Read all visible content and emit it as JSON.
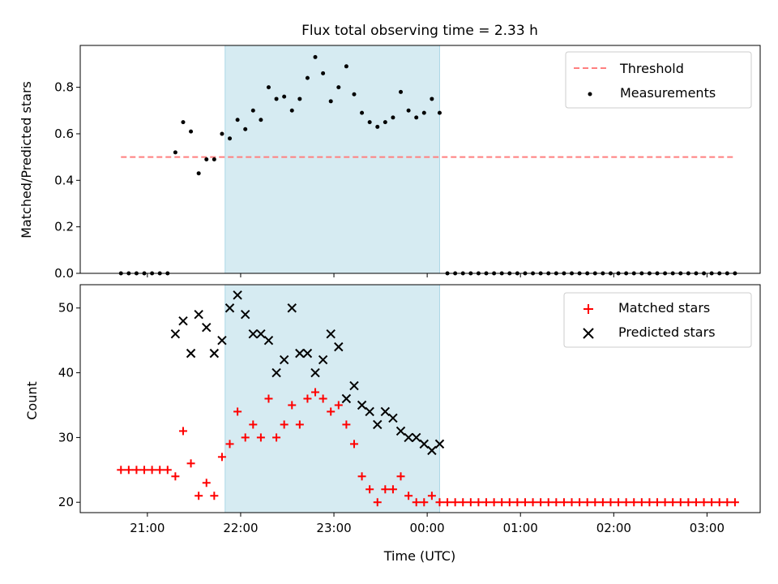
{
  "title": "Flux total observing time = 2.33 h",
  "colors": {
    "threshold": "#ff7f7f",
    "measurement": "#000000",
    "matched": "#ff0000",
    "predicted": "#000000",
    "shade": "#add8e6"
  },
  "chart_data": [
    {
      "type": "scatter",
      "panel": "top",
      "title": "Flux total observing time = 2.33 h",
      "xlabel": "",
      "ylabel": "Matched/Predicted stars",
      "xlim": [
        20.28,
        3.57
      ],
      "ylim": [
        0.0,
        0.98
      ],
      "yticks": [
        0.0,
        0.2,
        0.4,
        0.6,
        0.8
      ],
      "ytick_labels": [
        "0.0",
        "0.2",
        "0.4",
        "0.6",
        "0.8"
      ],
      "grid": false,
      "legend": "top-right",
      "shaded_span": [
        "21:50",
        "00:08"
      ],
      "threshold": {
        "name": "Threshold",
        "y": 0.5,
        "x": [
          "20:43",
          "03:18"
        ]
      },
      "series": [
        {
          "name": "Measurements",
          "x": [
            "20:43",
            "20:48",
            "20:53",
            "20:58",
            "21:03",
            "21:08",
            "21:13",
            "21:18",
            "21:23",
            "21:28",
            "21:33",
            "21:38",
            "21:43",
            "21:48",
            "21:53",
            "21:58",
            "22:03",
            "22:08",
            "22:13",
            "22:18",
            "22:23",
            "22:28",
            "22:33",
            "22:38",
            "22:43",
            "22:48",
            "22:53",
            "22:58",
            "23:03",
            "23:08",
            "23:13",
            "23:18",
            "23:23",
            "23:28",
            "23:33",
            "23:38",
            "23:43",
            "23:48",
            "23:53",
            "23:58",
            "00:03",
            "00:08",
            "00:13",
            "00:18",
            "00:23",
            "00:28",
            "00:33",
            "00:38",
            "00:43",
            "00:48",
            "00:53",
            "00:58",
            "01:03",
            "01:08",
            "01:13",
            "01:18",
            "01:23",
            "01:28",
            "01:33",
            "01:38",
            "01:43",
            "01:48",
            "01:53",
            "01:58",
            "02:03",
            "02:08",
            "02:13",
            "02:18",
            "02:23",
            "02:28",
            "02:33",
            "02:38",
            "02:43",
            "02:48",
            "02:53",
            "02:58",
            "03:03",
            "03:08",
            "03:13",
            "03:18"
          ],
          "y": [
            0.0,
            0.0,
            0.0,
            0.0,
            0.0,
            0.0,
            0.0,
            0.52,
            0.65,
            0.61,
            0.43,
            0.49,
            0.49,
            0.6,
            0.58,
            0.66,
            0.62,
            0.7,
            0.66,
            0.8,
            0.75,
            0.76,
            0.7,
            0.75,
            0.84,
            0.93,
            0.86,
            0.74,
            0.8,
            0.89,
            0.77,
            0.69,
            0.65,
            0.63,
            0.65,
            0.67,
            0.78,
            0.7,
            0.67,
            0.69,
            0.75,
            0.69,
            0.0,
            0.0,
            0.0,
            0.0,
            0.0,
            0.0,
            0.0,
            0.0,
            0.0,
            0.0,
            0.0,
            0.0,
            0.0,
            0.0,
            0.0,
            0.0,
            0.0,
            0.0,
            0.0,
            0.0,
            0.0,
            0.0,
            0.0,
            0.0,
            0.0,
            0.0,
            0.0,
            0.0,
            0.0,
            0.0,
            0.0,
            0.0,
            0.0,
            0.0,
            0.0,
            0.0,
            0.0,
            0.0
          ]
        }
      ]
    },
    {
      "type": "scatter",
      "panel": "bottom",
      "xlabel": "Time (UTC)",
      "ylabel": "Count",
      "xlim": [
        20.28,
        3.57
      ],
      "ylim": [
        18.4,
        53.6
      ],
      "yticks": [
        20,
        30,
        40,
        50
      ],
      "ytick_labels": [
        "20",
        "30",
        "40",
        "50"
      ],
      "xtick_labels": [
        "21:00",
        "22:00",
        "23:00",
        "00:00",
        "01:00",
        "02:00",
        "03:00"
      ],
      "grid": false,
      "legend": "top-right",
      "shaded_span": [
        "21:50",
        "00:08"
      ],
      "series": [
        {
          "name": "Matched stars",
          "marker": "+",
          "x": [
            "20:43",
            "20:48",
            "20:53",
            "20:58",
            "21:03",
            "21:08",
            "21:13",
            "21:18",
            "21:23",
            "21:28",
            "21:33",
            "21:38",
            "21:43",
            "21:48",
            "21:53",
            "21:58",
            "22:03",
            "22:08",
            "22:13",
            "22:18",
            "22:23",
            "22:28",
            "22:33",
            "22:38",
            "22:43",
            "22:48",
            "22:53",
            "22:58",
            "23:03",
            "23:08",
            "23:13",
            "23:18",
            "23:23",
            "23:28",
            "23:33",
            "23:38",
            "23:43",
            "23:48",
            "23:53",
            "23:58",
            "00:03",
            "00:08",
            "00:13",
            "00:18",
            "00:23",
            "00:28",
            "00:33",
            "00:38",
            "00:43",
            "00:48",
            "00:53",
            "00:58",
            "01:03",
            "01:08",
            "01:13",
            "01:18",
            "01:23",
            "01:28",
            "01:33",
            "01:38",
            "01:43",
            "01:48",
            "01:53",
            "01:58",
            "02:03",
            "02:08",
            "02:13",
            "02:18",
            "02:23",
            "02:28",
            "02:33",
            "02:38",
            "02:43",
            "02:48",
            "02:53",
            "02:58",
            "03:03",
            "03:08",
            "03:13",
            "03:18"
          ],
          "y": [
            25,
            25,
            25,
            25,
            25,
            25,
            25,
            24,
            31,
            26,
            21,
            23,
            21,
            27,
            29,
            34,
            30,
            32,
            30,
            36,
            30,
            32,
            35,
            32,
            36,
            37,
            36,
            34,
            35,
            32,
            29,
            24,
            22,
            20,
            22,
            22,
            24,
            21,
            20,
            20,
            21,
            20,
            20,
            20,
            20,
            20,
            20,
            20,
            20,
            20,
            20,
            20,
            20,
            20,
            20,
            20,
            20,
            20,
            20,
            20,
            20,
            20,
            20,
            20,
            20,
            20,
            20,
            20,
            20,
            20,
            20,
            20,
            20,
            20,
            20,
            20,
            20,
            20,
            20,
            20
          ]
        },
        {
          "name": "Predicted stars",
          "marker": "x",
          "x": [
            "21:18",
            "21:23",
            "21:28",
            "21:33",
            "21:38",
            "21:43",
            "21:48",
            "21:53",
            "21:58",
            "22:03",
            "22:08",
            "22:13",
            "22:18",
            "22:23",
            "22:28",
            "22:33",
            "22:38",
            "22:43",
            "22:48",
            "22:53",
            "22:58",
            "23:03",
            "23:08",
            "23:13",
            "23:18",
            "23:23",
            "23:28",
            "23:33",
            "23:38",
            "23:43",
            "23:48",
            "23:53",
            "23:58",
            "00:03",
            "00:08"
          ],
          "y": [
            46,
            48,
            43,
            49,
            47,
            43,
            45,
            50,
            52,
            49,
            46,
            46,
            45,
            40,
            42,
            50,
            43,
            43,
            40,
            42,
            46,
            44,
            36,
            38,
            35,
            34,
            32,
            34,
            33,
            31,
            30,
            30,
            29,
            28,
            29
          ]
        }
      ]
    }
  ]
}
